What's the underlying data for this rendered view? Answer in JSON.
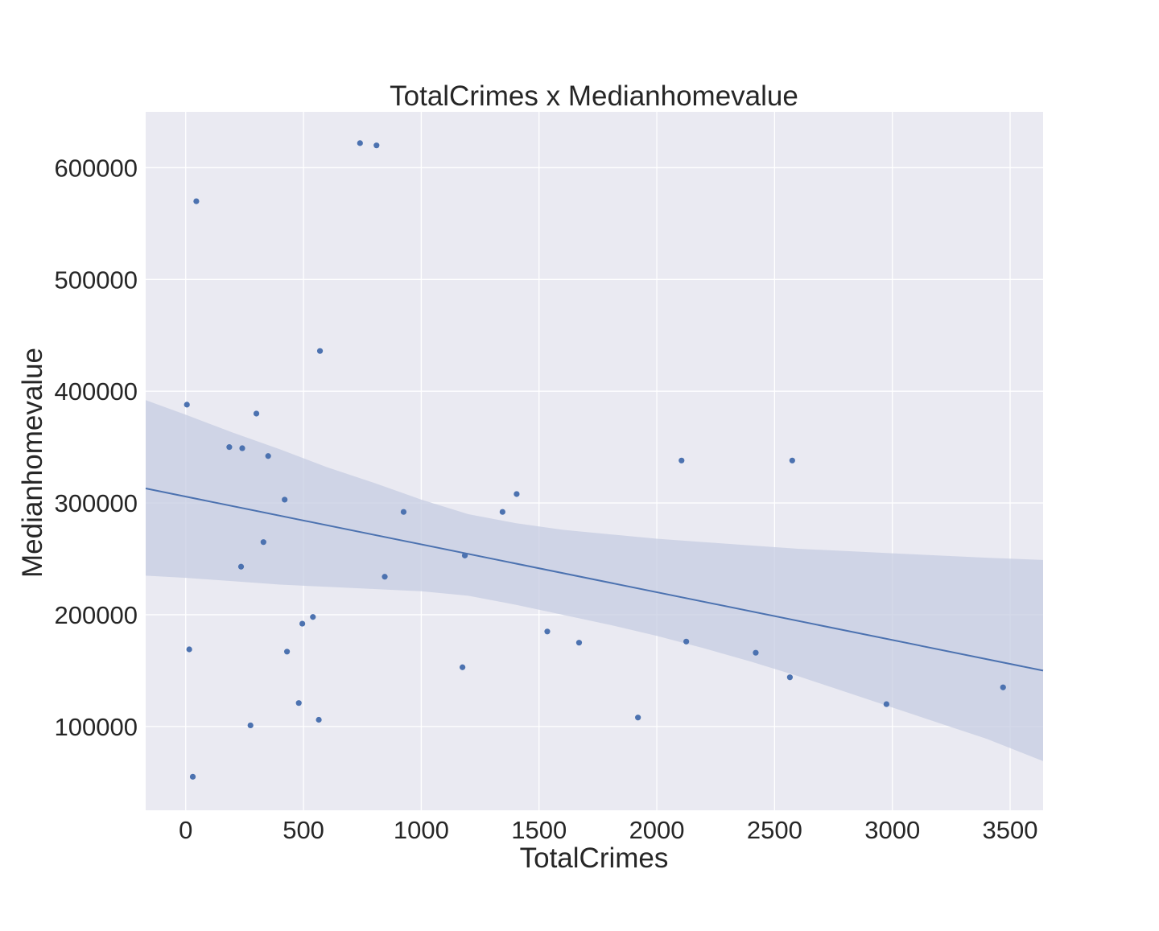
{
  "chart_data": {
    "type": "scatter",
    "title": "TotalCrimes x Medianhomevalue",
    "xlabel": "TotalCrimes",
    "ylabel": "Medianhomevalue",
    "xlim": [
      -170,
      3640
    ],
    "ylim": [
      25000,
      650000
    ],
    "xticks": [
      0,
      500,
      1000,
      1500,
      2000,
      2500,
      3000,
      3500
    ],
    "yticks": [
      100000,
      200000,
      300000,
      400000,
      500000,
      600000
    ],
    "grid": true,
    "colors": {
      "background": "#eaeaf2",
      "grid": "#ffffff",
      "points": "#4c72b0",
      "regression_line": "#4c72b0",
      "confidence_band": "#c5cce2"
    },
    "points": [
      {
        "x": 740,
        "y": 622000
      },
      {
        "x": 810,
        "y": 620000
      },
      {
        "x": 45,
        "y": 570000
      },
      {
        "x": 570,
        "y": 436000
      },
      {
        "x": 5,
        "y": 388000
      },
      {
        "x": 300,
        "y": 380000
      },
      {
        "x": 185,
        "y": 350000
      },
      {
        "x": 240,
        "y": 349000
      },
      {
        "x": 350,
        "y": 342000
      },
      {
        "x": 2105,
        "y": 338000
      },
      {
        "x": 2575,
        "y": 338000
      },
      {
        "x": 1405,
        "y": 308000
      },
      {
        "x": 420,
        "y": 303000
      },
      {
        "x": 925,
        "y": 292000
      },
      {
        "x": 1345,
        "y": 292000
      },
      {
        "x": 330,
        "y": 265000
      },
      {
        "x": 1185,
        "y": 253000
      },
      {
        "x": 235,
        "y": 243000
      },
      {
        "x": 845,
        "y": 234000
      },
      {
        "x": 540,
        "y": 198000
      },
      {
        "x": 495,
        "y": 192000
      },
      {
        "x": 1535,
        "y": 185000
      },
      {
        "x": 2125,
        "y": 176000
      },
      {
        "x": 1670,
        "y": 175000
      },
      {
        "x": 15,
        "y": 169000
      },
      {
        "x": 430,
        "y": 167000
      },
      {
        "x": 2420,
        "y": 166000
      },
      {
        "x": 1175,
        "y": 153000
      },
      {
        "x": 2565,
        "y": 144000
      },
      {
        "x": 3470,
        "y": 135000
      },
      {
        "x": 480,
        "y": 121000
      },
      {
        "x": 2975,
        "y": 120000
      },
      {
        "x": 1920,
        "y": 108000
      },
      {
        "x": 565,
        "y": 106000
      },
      {
        "x": 275,
        "y": 101000
      },
      {
        "x": 30,
        "y": 55000
      }
    ],
    "regression_line": [
      {
        "x": -170,
        "y": 313000
      },
      {
        "x": 3640,
        "y": 150000
      }
    ],
    "confidence_band": {
      "x": [
        -170,
        0,
        200,
        400,
        500,
        600,
        800,
        1000,
        1200,
        1400,
        1600,
        1800,
        2000,
        2200,
        2400,
        2600,
        2800,
        3000,
        3200,
        3400,
        3640
      ],
      "upper": [
        392000,
        379000,
        363000,
        348000,
        340000,
        332000,
        318000,
        303000,
        290000,
        282000,
        276000,
        272000,
        268000,
        265000,
        262000,
        259000,
        257000,
        255000,
        253000,
        251000,
        249000
      ],
      "lower": [
        235000,
        233000,
        230000,
        227000,
        226000,
        225000,
        223000,
        221000,
        217000,
        209000,
        200000,
        191000,
        181000,
        170000,
        158000,
        145000,
        131000,
        117000,
        103000,
        89000,
        69000
      ]
    }
  }
}
